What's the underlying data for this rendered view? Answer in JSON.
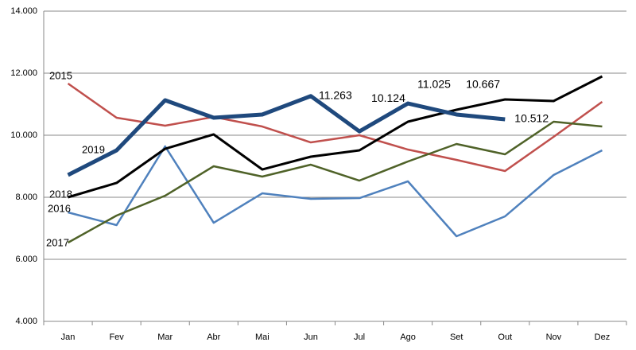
{
  "chart_data": {
    "type": "line",
    "categories": [
      "Jan",
      "Fev",
      "Mar",
      "Abr",
      "Mai",
      "Jun",
      "Jul",
      "Ago",
      "Set",
      "Out",
      "Nov",
      "Dez"
    ],
    "series": [
      {
        "name": "2015",
        "color": "#c0504d",
        "values": [
          11667,
          10564,
          10308,
          10590,
          10282,
          9769,
          10000,
          9538,
          9205,
          8846,
          9949,
          11077
        ]
      },
      {
        "name": "2016",
        "color": "#4f81bd",
        "values": [
          7513,
          7103,
          9641,
          7179,
          8128,
          7949,
          7974,
          8513,
          6744,
          7385,
          8718,
          9513
        ]
      },
      {
        "name": "2017",
        "color": "#4f6228",
        "values": [
          6538,
          7410,
          8051,
          9000,
          8667,
          9051,
          8538,
          9154,
          9718,
          9385,
          10436,
          10282
        ]
      },
      {
        "name": "2018",
        "color": "#000000",
        "values": [
          8000,
          8462,
          9564,
          10026,
          8897,
          9308,
          9513,
          10436,
          10821,
          11154,
          11103,
          11897
        ]
      },
      {
        "name": "2019",
        "color": "#1f497d",
        "values": [
          8718,
          9513,
          11128,
          10564,
          10667,
          11263,
          10124,
          11025,
          10667,
          10512,
          null,
          null
        ],
        "value_labels": [
          null,
          null,
          null,
          null,
          null,
          "11.263",
          "10.124",
          "11.025",
          "10.667",
          "10.512",
          null,
          null
        ]
      }
    ],
    "ylim": [
      4000,
      14000
    ],
    "yticks": [
      {
        "value": 4000,
        "label": "4.000"
      },
      {
        "value": 6000,
        "label": "6.000"
      },
      {
        "value": 8000,
        "label": "8.000"
      },
      {
        "value": 10000,
        "label": "10.000"
      },
      {
        "value": 12000,
        "label": "12.000"
      },
      {
        "value": 14000,
        "label": "14.000"
      }
    ],
    "grid": true
  }
}
